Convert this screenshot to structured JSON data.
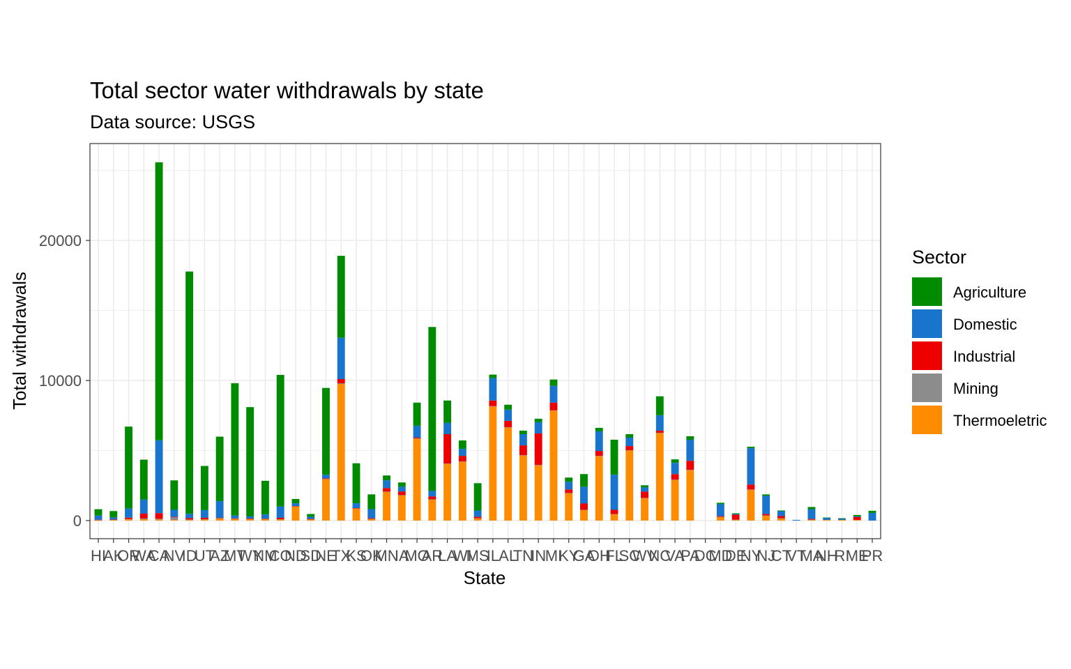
{
  "chart_data": {
    "type": "bar",
    "stacked": true,
    "title": "Total sector water withdrawals by state",
    "subtitle": "Data source: USGS",
    "xlabel": "State",
    "ylabel": "Total withdrawals",
    "ylim": [
      -1300,
      26200
    ],
    "yticks": [
      0,
      10000,
      20000
    ],
    "grid": true,
    "legend_position": "right",
    "legend_title": "Sector",
    "categories": [
      "HI",
      "AK",
      "OR",
      "WA",
      "CA",
      "NV",
      "ID",
      "UT",
      "AZ",
      "MT",
      "WY",
      "NM",
      "CO",
      "ND",
      "SD",
      "NE",
      "TX",
      "KS",
      "OK",
      "MN",
      "IA",
      "MO",
      "AR",
      "LA",
      "WI",
      "MS",
      "IL",
      "AL",
      "TN",
      "IN",
      "MI",
      "KY",
      "GA",
      "OH",
      "FL",
      "SC",
      "WV",
      "NC",
      "VA",
      "PA",
      "DC",
      "MD",
      "DE",
      "NY",
      "NJ",
      "CT",
      "VT",
      "MA",
      "NH",
      "RI",
      "ME",
      "PR"
    ],
    "series": [
      {
        "name": "Thermoeletric",
        "color": "#FF8C00",
        "values": [
          20,
          50,
          80,
          100,
          80,
          50,
          60,
          80,
          150,
          120,
          100,
          100,
          80,
          1000,
          80,
          2950,
          9750,
          850,
          100,
          2050,
          1800,
          5850,
          1500,
          4050,
          4200,
          150,
          8150,
          6650,
          4650,
          3950,
          7850,
          1950,
          750,
          4600,
          450,
          5000,
          1600,
          6250,
          2900,
          3600,
          0,
          250,
          50,
          2200,
          350,
          150,
          0,
          50,
          50,
          50,
          50,
          0
        ]
      },
      {
        "name": "Mining",
        "color": "#8C8C8C",
        "values": [
          30,
          20,
          30,
          50,
          50,
          200,
          20,
          20,
          20,
          20,
          30,
          20,
          20,
          20,
          20,
          20,
          50,
          20,
          20,
          20,
          20,
          20,
          20,
          20,
          20,
          20,
          20,
          20,
          20,
          20,
          20,
          20,
          20,
          20,
          20,
          20,
          20,
          20,
          20,
          20,
          0,
          20,
          20,
          20,
          20,
          20,
          0,
          20,
          0,
          0,
          0,
          0
        ]
      },
      {
        "name": "Industrial",
        "color": "#EE0000",
        "values": [
          10,
          10,
          100,
          350,
          400,
          20,
          100,
          100,
          20,
          20,
          20,
          20,
          100,
          20,
          20,
          50,
          300,
          20,
          50,
          250,
          250,
          50,
          200,
          2100,
          400,
          100,
          400,
          450,
          700,
          2250,
          550,
          250,
          450,
          350,
          300,
          300,
          450,
          150,
          400,
          650,
          0,
          50,
          350,
          350,
          100,
          150,
          0,
          50,
          0,
          0,
          200,
          0
        ]
      },
      {
        "name": "Domestic",
        "color": "#1874CD",
        "values": [
          300,
          150,
          650,
          1000,
          5200,
          500,
          300,
          550,
          1200,
          200,
          150,
          300,
          800,
          200,
          150,
          250,
          2950,
          350,
          650,
          550,
          350,
          850,
          400,
          800,
          500,
          450,
          1600,
          800,
          800,
          800,
          1200,
          550,
          1200,
          1400,
          2500,
          600,
          300,
          1100,
          800,
          1500,
          0,
          850,
          50,
          2600,
          1300,
          350,
          50,
          700,
          150,
          100,
          50,
          550
        ]
      },
      {
        "name": "Agriculture",
        "color": "#008B00",
        "values": [
          450,
          450,
          5850,
          2850,
          19850,
          2100,
          17300,
          3150,
          4600,
          9450,
          7800,
          2400,
          9400,
          300,
          200,
          6200,
          5850,
          2850,
          1050,
          350,
          300,
          1650,
          11700,
          1600,
          600,
          1950,
          250,
          350,
          250,
          250,
          450,
          300,
          900,
          250,
          2500,
          250,
          150,
          1350,
          250,
          250,
          0,
          100,
          50,
          100,
          100,
          50,
          0,
          150,
          20,
          20,
          100,
          150
        ]
      }
    ]
  }
}
